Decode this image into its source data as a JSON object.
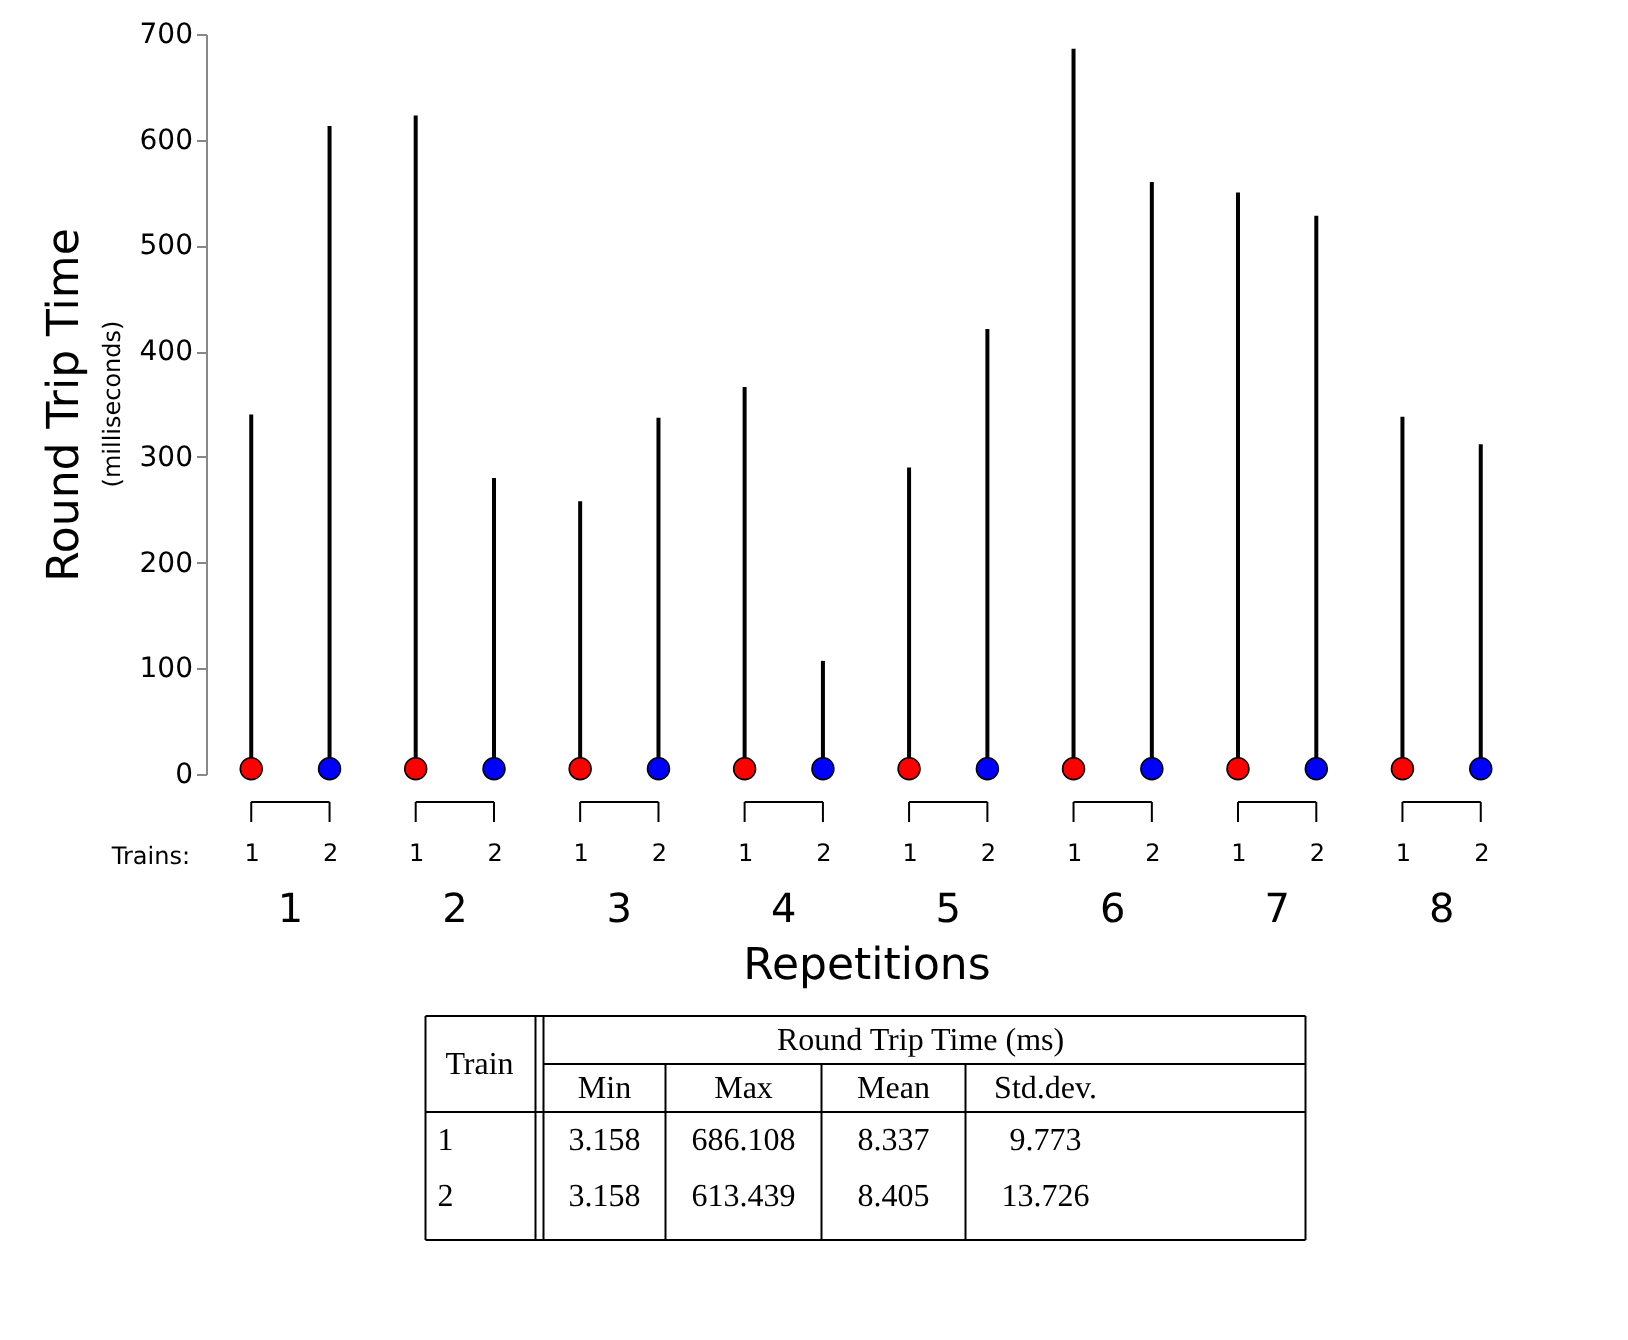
{
  "chart_data": {
    "type": "bar",
    "ylabel": "Round Trip Time",
    "xlabel": "Repetitions",
    "categories": [
      "1",
      "2",
      "1",
      "2",
      "1",
      "2",
      "1",
      "2",
      "1",
      "2",
      "1",
      "2",
      "1",
      "2",
      "1",
      "2"
    ],
    "series": [
      {
        "color": "#000000",
        "values": [
          340,
          613,
          623,
          280,
          258,
          337,
          366,
          107,
          290,
          421,
          686,
          560,
          550,
          528,
          338,
          312
        ]
      },
      {
        "type": "scatter",
        "color": "#ff0000",
        "values": [
          5,
          null,
          5,
          null,
          5,
          null,
          5,
          null,
          5,
          null,
          5,
          null,
          5,
          null,
          5,
          null
        ]
      },
      {
        "type": "scatter",
        "color": "#0000ff",
        "values": [
          null,
          5,
          null,
          5,
          null,
          5,
          null,
          5,
          null,
          5,
          null,
          5,
          null,
          5,
          null,
          5
        ]
      }
    ],
    "marker": "circle",
    "ylim": [
      0,
      700
    ],
    "yticks": [
      0,
      100,
      200,
      300,
      400,
      500,
      600,
      700
    ],
    "grid": false,
    "legend": false,
    "annotations": [
      "(milliseconds)",
      "Trains:",
      "1",
      "2",
      "3",
      "4",
      "5",
      "6",
      "7",
      "8",
      "Train",
      "Round Trip Time (ms)",
      "Min",
      "Max",
      "Mean",
      "Std.dev.",
      "1",
      "3.158",
      "686.108",
      "8.337",
      "9.773",
      "2",
      "3.158",
      "613.439",
      "8.405",
      "13.726"
    ]
  }
}
